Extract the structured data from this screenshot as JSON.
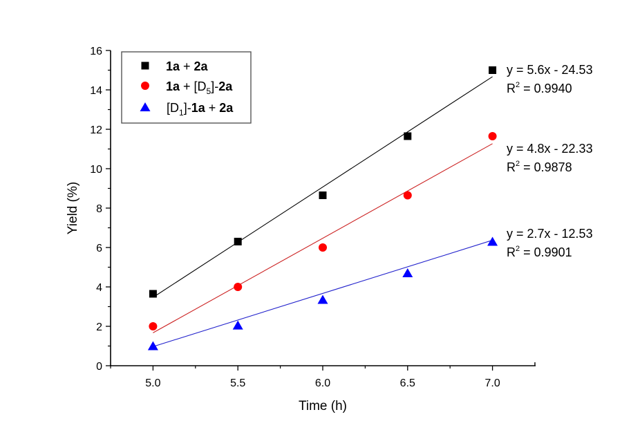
{
  "chart_data": {
    "type": "scatter",
    "title": "",
    "xlabel": "Time (h)",
    "ylabel": "Yield (%)",
    "xlim": [
      4.75,
      7.25
    ],
    "ylim": [
      0,
      16
    ],
    "xticks": [
      "5.0",
      "5.5",
      "6.0",
      "6.5",
      "7.0"
    ],
    "xtick_values": [
      5.0,
      5.5,
      6.0,
      6.5,
      7.0
    ],
    "yticks": [
      "0",
      "2",
      "4",
      "6",
      "8",
      "10",
      "12",
      "14",
      "16"
    ],
    "ytick_values": [
      0,
      2,
      4,
      6,
      8,
      10,
      12,
      14,
      16
    ],
    "grid": false,
    "legend_position": "top-left",
    "x": [
      5.0,
      5.5,
      6.0,
      6.5,
      7.0
    ],
    "series": [
      {
        "name": "1a + 2a",
        "legend_parts": [
          {
            "t": "1a",
            "b": true
          },
          {
            "t": " + "
          },
          {
            "t": "2a",
            "b": true
          }
        ],
        "marker": "square",
        "color": "#000000",
        "values": [
          3.65,
          6.3,
          8.65,
          11.65,
          15.0
        ],
        "fit": {
          "slope": 5.6,
          "intercept": -24.53,
          "equation": "y = 5.6x - 24.53",
          "r2_label": "R",
          "r2_value": " = 0.9940"
        }
      },
      {
        "name": "1a + [D5]-2a",
        "legend_parts": [
          {
            "t": "1a",
            "b": true
          },
          {
            "t": " + [D"
          },
          {
            "t": "5",
            "sub": true
          },
          {
            "t": "]-"
          },
          {
            "t": "2a",
            "b": true
          }
        ],
        "marker": "circle",
        "color": "#ff0000",
        "line_color": "#cc2222",
        "values": [
          2.0,
          4.0,
          6.0,
          8.65,
          11.65
        ],
        "fit": {
          "slope": 4.8,
          "intercept": -22.33,
          "equation": "y = 4.8x - 22.33",
          "r2_label": "R",
          "r2_value": " = 0.9878"
        }
      },
      {
        "name": "[D1]-1a + 2a",
        "legend_parts": [
          {
            "t": "[D"
          },
          {
            "t": "1",
            "sub": true
          },
          {
            "t": "]-"
          },
          {
            "t": "1a",
            "b": true
          },
          {
            "t": " + "
          },
          {
            "t": "2a",
            "b": true
          }
        ],
        "marker": "triangle",
        "color": "#0000ff",
        "line_color": "#2222cc",
        "values": [
          1.0,
          2.05,
          3.35,
          4.7,
          6.3
        ],
        "fit": {
          "slope": 2.7,
          "intercept": -12.53,
          "equation": "y = 2.7x - 12.53",
          "r2_label": "R",
          "r2_value": " = 0.9901"
        }
      }
    ],
    "r2_superscript": "2"
  }
}
